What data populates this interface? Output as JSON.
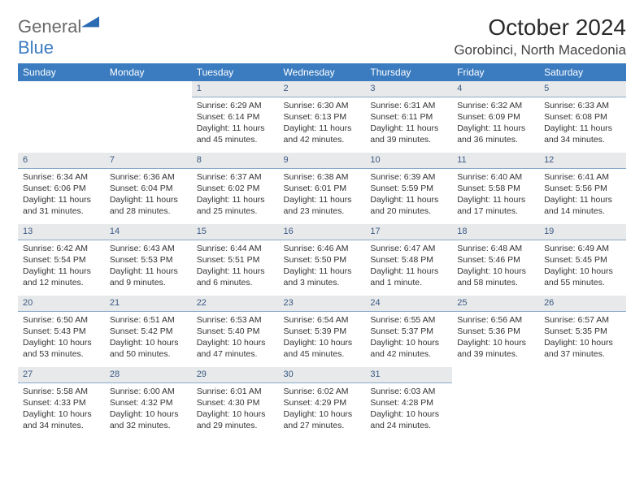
{
  "logo": {
    "word1": "General",
    "word2": "Blue",
    "color_general": "#6a6a6a",
    "color_blue": "#3b7cc0"
  },
  "title": {
    "month": "October 2024",
    "location": "Gorobinci, North Macedonia"
  },
  "colors": {
    "header_bg": "#3b7cc0",
    "header_fg": "#ffffff",
    "daynum_bg": "#e8e9ea",
    "daynum_fg": "#3a5a85",
    "daynum_border": "#8aa9c9"
  },
  "day_headers": [
    "Sunday",
    "Monday",
    "Tuesday",
    "Wednesday",
    "Thursday",
    "Friday",
    "Saturday"
  ],
  "weeks": [
    [
      null,
      null,
      {
        "n": "1",
        "sr": "Sunrise: 6:29 AM",
        "ss": "Sunset: 6:14 PM",
        "dl": "Daylight: 11 hours and 45 minutes."
      },
      {
        "n": "2",
        "sr": "Sunrise: 6:30 AM",
        "ss": "Sunset: 6:13 PM",
        "dl": "Daylight: 11 hours and 42 minutes."
      },
      {
        "n": "3",
        "sr": "Sunrise: 6:31 AM",
        "ss": "Sunset: 6:11 PM",
        "dl": "Daylight: 11 hours and 39 minutes."
      },
      {
        "n": "4",
        "sr": "Sunrise: 6:32 AM",
        "ss": "Sunset: 6:09 PM",
        "dl": "Daylight: 11 hours and 36 minutes."
      },
      {
        "n": "5",
        "sr": "Sunrise: 6:33 AM",
        "ss": "Sunset: 6:08 PM",
        "dl": "Daylight: 11 hours and 34 minutes."
      }
    ],
    [
      {
        "n": "6",
        "sr": "Sunrise: 6:34 AM",
        "ss": "Sunset: 6:06 PM",
        "dl": "Daylight: 11 hours and 31 minutes."
      },
      {
        "n": "7",
        "sr": "Sunrise: 6:36 AM",
        "ss": "Sunset: 6:04 PM",
        "dl": "Daylight: 11 hours and 28 minutes."
      },
      {
        "n": "8",
        "sr": "Sunrise: 6:37 AM",
        "ss": "Sunset: 6:02 PM",
        "dl": "Daylight: 11 hours and 25 minutes."
      },
      {
        "n": "9",
        "sr": "Sunrise: 6:38 AM",
        "ss": "Sunset: 6:01 PM",
        "dl": "Daylight: 11 hours and 23 minutes."
      },
      {
        "n": "10",
        "sr": "Sunrise: 6:39 AM",
        "ss": "Sunset: 5:59 PM",
        "dl": "Daylight: 11 hours and 20 minutes."
      },
      {
        "n": "11",
        "sr": "Sunrise: 6:40 AM",
        "ss": "Sunset: 5:58 PM",
        "dl": "Daylight: 11 hours and 17 minutes."
      },
      {
        "n": "12",
        "sr": "Sunrise: 6:41 AM",
        "ss": "Sunset: 5:56 PM",
        "dl": "Daylight: 11 hours and 14 minutes."
      }
    ],
    [
      {
        "n": "13",
        "sr": "Sunrise: 6:42 AM",
        "ss": "Sunset: 5:54 PM",
        "dl": "Daylight: 11 hours and 12 minutes."
      },
      {
        "n": "14",
        "sr": "Sunrise: 6:43 AM",
        "ss": "Sunset: 5:53 PM",
        "dl": "Daylight: 11 hours and 9 minutes."
      },
      {
        "n": "15",
        "sr": "Sunrise: 6:44 AM",
        "ss": "Sunset: 5:51 PM",
        "dl": "Daylight: 11 hours and 6 minutes."
      },
      {
        "n": "16",
        "sr": "Sunrise: 6:46 AM",
        "ss": "Sunset: 5:50 PM",
        "dl": "Daylight: 11 hours and 3 minutes."
      },
      {
        "n": "17",
        "sr": "Sunrise: 6:47 AM",
        "ss": "Sunset: 5:48 PM",
        "dl": "Daylight: 11 hours and 1 minute."
      },
      {
        "n": "18",
        "sr": "Sunrise: 6:48 AM",
        "ss": "Sunset: 5:46 PM",
        "dl": "Daylight: 10 hours and 58 minutes."
      },
      {
        "n": "19",
        "sr": "Sunrise: 6:49 AM",
        "ss": "Sunset: 5:45 PM",
        "dl": "Daylight: 10 hours and 55 minutes."
      }
    ],
    [
      {
        "n": "20",
        "sr": "Sunrise: 6:50 AM",
        "ss": "Sunset: 5:43 PM",
        "dl": "Daylight: 10 hours and 53 minutes."
      },
      {
        "n": "21",
        "sr": "Sunrise: 6:51 AM",
        "ss": "Sunset: 5:42 PM",
        "dl": "Daylight: 10 hours and 50 minutes."
      },
      {
        "n": "22",
        "sr": "Sunrise: 6:53 AM",
        "ss": "Sunset: 5:40 PM",
        "dl": "Daylight: 10 hours and 47 minutes."
      },
      {
        "n": "23",
        "sr": "Sunrise: 6:54 AM",
        "ss": "Sunset: 5:39 PM",
        "dl": "Daylight: 10 hours and 45 minutes."
      },
      {
        "n": "24",
        "sr": "Sunrise: 6:55 AM",
        "ss": "Sunset: 5:37 PM",
        "dl": "Daylight: 10 hours and 42 minutes."
      },
      {
        "n": "25",
        "sr": "Sunrise: 6:56 AM",
        "ss": "Sunset: 5:36 PM",
        "dl": "Daylight: 10 hours and 39 minutes."
      },
      {
        "n": "26",
        "sr": "Sunrise: 6:57 AM",
        "ss": "Sunset: 5:35 PM",
        "dl": "Daylight: 10 hours and 37 minutes."
      }
    ],
    [
      {
        "n": "27",
        "sr": "Sunrise: 5:58 AM",
        "ss": "Sunset: 4:33 PM",
        "dl": "Daylight: 10 hours and 34 minutes."
      },
      {
        "n": "28",
        "sr": "Sunrise: 6:00 AM",
        "ss": "Sunset: 4:32 PM",
        "dl": "Daylight: 10 hours and 32 minutes."
      },
      {
        "n": "29",
        "sr": "Sunrise: 6:01 AM",
        "ss": "Sunset: 4:30 PM",
        "dl": "Daylight: 10 hours and 29 minutes."
      },
      {
        "n": "30",
        "sr": "Sunrise: 6:02 AM",
        "ss": "Sunset: 4:29 PM",
        "dl": "Daylight: 10 hours and 27 minutes."
      },
      {
        "n": "31",
        "sr": "Sunrise: 6:03 AM",
        "ss": "Sunset: 4:28 PM",
        "dl": "Daylight: 10 hours and 24 minutes."
      },
      null,
      null
    ]
  ]
}
